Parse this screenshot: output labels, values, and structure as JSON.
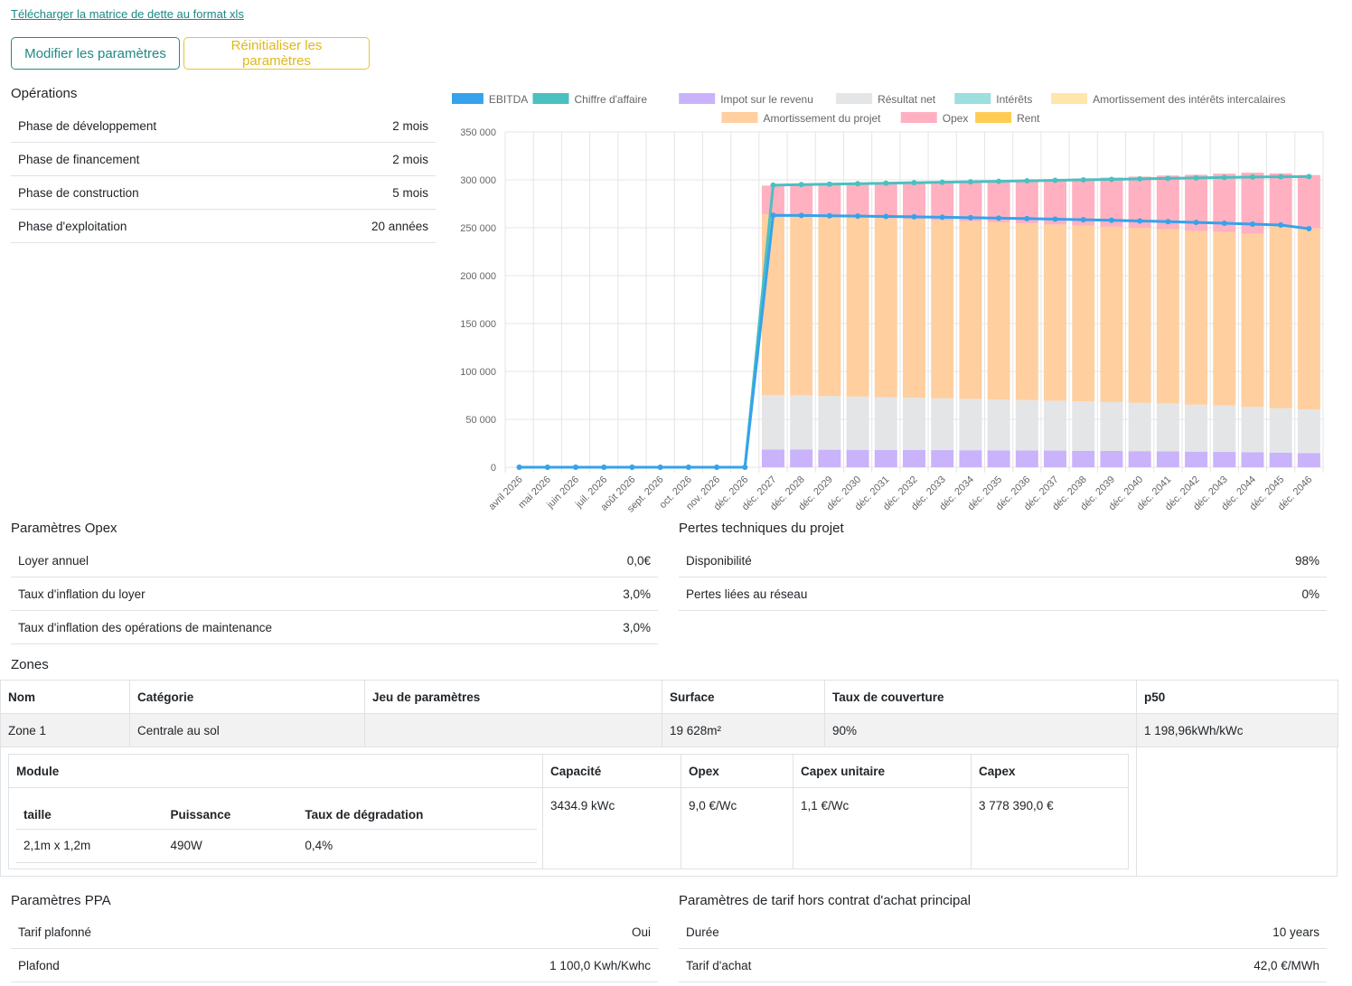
{
  "download_link": "Télécharger la matrice de dette au format xls",
  "buttons": {
    "edit": "Modifier les paramètres",
    "reset": "Réinitialiser les paramètres"
  },
  "operations": {
    "title": "Opérations",
    "rows": [
      {
        "label": "Phase de développement",
        "value": "2 mois"
      },
      {
        "label": "Phase de financement",
        "value": "2 mois"
      },
      {
        "label": "Phase de construction",
        "value": "5 mois"
      },
      {
        "label": "Phase d'exploitation",
        "value": "20 années"
      }
    ]
  },
  "chart_data": {
    "type": "bar",
    "categories": [
      "avril 2026",
      "mai 2026",
      "juin 2026",
      "juil. 2026",
      "août 2026",
      "sept. 2026",
      "oct. 2026",
      "nov. 2026",
      "déc. 2026",
      "déc. 2027",
      "déc. 2028",
      "déc. 2029",
      "déc. 2030",
      "déc. 2031",
      "déc. 2032",
      "déc. 2033",
      "déc. 2034",
      "déc. 2035",
      "déc. 2036",
      "déc. 2037",
      "déc. 2038",
      "déc. 2039",
      "déc. 2040",
      "déc. 2041",
      "déc. 2042",
      "déc. 2043",
      "déc. 2044",
      "déc. 2045",
      "déc. 2046"
    ],
    "ylim": [
      0,
      350000
    ],
    "yticks": [
      "0",
      "50 000",
      "100 000",
      "150 000",
      "200 000",
      "250 000",
      "300 000",
      "350 000"
    ],
    "legend": [
      {
        "name": "EBITDA",
        "color": "#36a2eb"
      },
      {
        "name": "Chiffre d'affaire",
        "color": "#4bc0c0"
      },
      {
        "name": "Impot sur le revenu",
        "color": "#c9b3fb"
      },
      {
        "name": "Résultat net",
        "color": "#e4e5e7"
      },
      {
        "name": "Intérêts",
        "color": "#9ddedf"
      },
      {
        "name": "Amortissement des intérêts intercalaires",
        "color": "#ffe6aa"
      },
      {
        "name": "Amortissement du projet",
        "color": "#ffcf9f"
      },
      {
        "name": "Opex",
        "color": "#ffb0c1"
      },
      {
        "name": "Rent",
        "color": "#ffcd56"
      }
    ],
    "stacked_series": [
      {
        "name": "Impot sur le revenu",
        "color": "#c9b3fb",
        "values": [
          0,
          0,
          0,
          0,
          0,
          0,
          0,
          0,
          0,
          18500,
          18400,
          18300,
          18200,
          18100,
          18000,
          17900,
          17800,
          17700,
          17600,
          17400,
          17200,
          17000,
          16800,
          16600,
          16300,
          16000,
          15700,
          15300,
          14900
        ]
      },
      {
        "name": "Résultat net",
        "color": "#e4e5e7",
        "values": [
          0,
          0,
          0,
          0,
          0,
          0,
          0,
          0,
          0,
          57000,
          56500,
          56000,
          55500,
          55000,
          54500,
          54000,
          53500,
          53000,
          52500,
          52000,
          51500,
          51000,
          50500,
          50000,
          49000,
          48500,
          47500,
          46500,
          45500
        ]
      },
      {
        "name": "Amortissement du projet",
        "color": "#ffcf9f",
        "values": [
          0,
          0,
          0,
          0,
          0,
          0,
          0,
          0,
          0,
          188500,
          188100,
          187700,
          187300,
          186900,
          186500,
          186000,
          185500,
          185000,
          184500,
          184000,
          183500,
          183000,
          182500,
          182000,
          181500,
          181000,
          180500,
          190000,
          189000
        ]
      },
      {
        "name": "Opex",
        "color": "#ffb0c1",
        "values": [
          0,
          0,
          0,
          0,
          0,
          0,
          0,
          0,
          0,
          30000,
          31500,
          33000,
          34700,
          36500,
          38300,
          40000,
          41700,
          43500,
          45400,
          47300,
          49300,
          51400,
          53600,
          55900,
          58500,
          61000,
          63800,
          55000,
          55600
        ]
      }
    ],
    "line_series": [
      {
        "name": "Chiffre d'affaire",
        "color": "#4bc0c0",
        "values": [
          0,
          0,
          0,
          0,
          0,
          0,
          0,
          0,
          0,
          294500,
          295000,
          295500,
          296000,
          296500,
          297000,
          297500,
          298000,
          298500,
          299000,
          299500,
          300000,
          300500,
          301000,
          301500,
          302000,
          302500,
          303000,
          303200,
          303400
        ]
      },
      {
        "name": "EBITDA",
        "color": "#36a2eb",
        "values": [
          0,
          0,
          0,
          0,
          0,
          0,
          0,
          0,
          0,
          263000,
          262800,
          262500,
          262200,
          261800,
          261400,
          261000,
          260500,
          260000,
          259500,
          259000,
          258400,
          257800,
          257100,
          256400,
          255600,
          254700,
          253800,
          252800,
          249000
        ]
      }
    ]
  },
  "opex": {
    "title": "Paramètres Opex",
    "rows": [
      {
        "label": "Loyer annuel",
        "value": "0,0€"
      },
      {
        "label": "Taux d'inflation du loyer",
        "value": "3,0%"
      },
      {
        "label": "Taux d'inflation des opérations de maintenance",
        "value": "3,0%"
      }
    ]
  },
  "pertes": {
    "title": "Pertes techniques du projet",
    "rows": [
      {
        "label": "Disponibilité",
        "value": "98%"
      },
      {
        "label": "Pertes liées au réseau",
        "value": "0%"
      }
    ]
  },
  "zones": {
    "title": "Zones",
    "headers": [
      "Nom",
      "Catégorie",
      "Jeu de paramètres",
      "Surface",
      "Taux de couverture",
      "p50"
    ],
    "row": [
      "Zone 1",
      "Centrale au sol",
      "",
      "19 628m²",
      "90%",
      "1 198,96kWh/kWc"
    ],
    "module": {
      "headers": [
        "Module",
        "Capacité",
        "Opex",
        "Capex unitaire",
        "Capex"
      ],
      "values": [
        "3434.9 kWc",
        "9,0 €/Wc",
        "1,1 €/Wc",
        "3 778 390,0 €"
      ],
      "sub_headers": [
        "taille",
        "Puissance",
        "Taux de dégradation"
      ],
      "sub_values": [
        "2,1m x 1,2m",
        "490W",
        "0,4%"
      ]
    }
  },
  "ppa": {
    "title": "Paramètres PPA",
    "rows": [
      {
        "label": "Tarif plafonné",
        "value": "Oui"
      },
      {
        "label": "Plafond",
        "value": "1 100,0 Kwh/Kwhc"
      }
    ]
  },
  "tarif": {
    "title": "Paramètres de tarif hors contrat d'achat principal",
    "rows": [
      {
        "label": "Durée",
        "value": "10 years"
      },
      {
        "label": "Tarif d'achat",
        "value": "42,0 €/MWh"
      }
    ]
  }
}
